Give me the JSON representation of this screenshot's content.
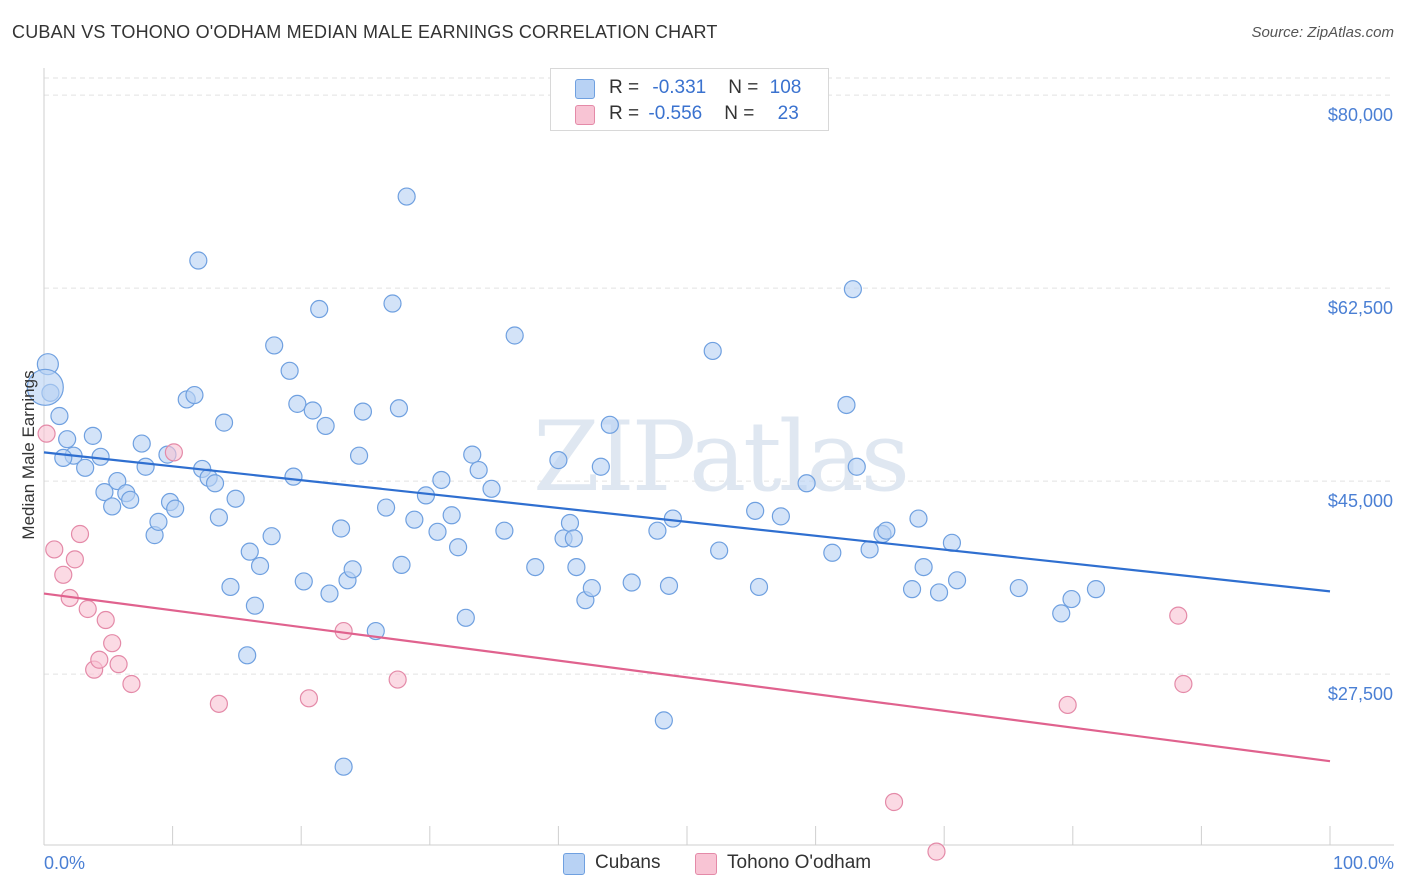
{
  "title": "CUBAN VS TOHONO O'ODHAM MEDIAN MALE EARNINGS CORRELATION CHART",
  "source": "Source: ZipAtlas.com",
  "watermark": "ZIPatlas",
  "colors": {
    "cubans_fill": "#b8d2f4",
    "cubans_stroke": "#6fa0e0",
    "cubans_line": "#2f6fd0",
    "tohono_fill": "#f8c4d4",
    "tohono_stroke": "#e48aa8",
    "tohono_line": "#e0628e",
    "tick_text": "#4a7fd4",
    "grid": "#e2e2e2"
  },
  "legend": {
    "rows": [
      {
        "r_label": "R = ",
        "r_value": "-0.331",
        "n_label": "N = ",
        "n_value": "108"
      },
      {
        "r_label": "R = ",
        "r_value": "-0.556",
        "n_label": "N = ",
        "n_value": "23"
      }
    ]
  },
  "bottom_legend": {
    "cubans": "Cubans",
    "tohono": "Tohono O'odham"
  },
  "chart_data": {
    "type": "scatter",
    "xlabel": "",
    "ylabel": "Median Male Earnings",
    "xlim": [
      0,
      100
    ],
    "ylim": [
      12000,
      83000
    ],
    "x_tick_labels": [
      "0.0%",
      "100.0%"
    ],
    "y_ticks": [
      27500,
      45000,
      62500,
      80000
    ],
    "y_tick_labels": [
      "$27,500",
      "$45,000",
      "$62,500",
      "$80,000"
    ],
    "grid": true,
    "series": [
      {
        "name": "Cubans",
        "trend": {
          "x": [
            0,
            100
          ],
          "y": [
            47600,
            35000
          ]
        },
        "points": [
          [
            0.3,
            55600
          ],
          [
            0.5,
            53000
          ],
          [
            1.2,
            50900
          ],
          [
            1.8,
            48800
          ],
          [
            2.3,
            47300
          ],
          [
            3.2,
            46200
          ],
          [
            3.8,
            49100
          ],
          [
            4.4,
            47200
          ],
          [
            4.7,
            44000
          ],
          [
            5.3,
            42700
          ],
          [
            5.7,
            45000
          ],
          [
            6.4,
            43900
          ],
          [
            6.7,
            43300
          ],
          [
            7.6,
            48400
          ],
          [
            7.9,
            46300
          ],
          [
            8.6,
            40100
          ],
          [
            8.9,
            41300
          ],
          [
            9.6,
            47400
          ],
          [
            9.8,
            43100
          ],
          [
            10.2,
            42500
          ],
          [
            11.1,
            52400
          ],
          [
            11.7,
            52800
          ],
          [
            12.0,
            65000
          ],
          [
            12.3,
            46100
          ],
          [
            12.8,
            45300
          ],
          [
            13.3,
            44800
          ],
          [
            13.6,
            41700
          ],
          [
            14.0,
            50300
          ],
          [
            14.9,
            43400
          ],
          [
            14.5,
            35400
          ],
          [
            16.0,
            38600
          ],
          [
            16.4,
            33700
          ],
          [
            16.8,
            37300
          ],
          [
            15.8,
            29200
          ],
          [
            17.9,
            57300
          ],
          [
            17.7,
            40000
          ],
          [
            19.1,
            55000
          ],
          [
            19.4,
            45400
          ],
          [
            19.7,
            52000
          ],
          [
            20.2,
            35900
          ],
          [
            20.9,
            51400
          ],
          [
            21.4,
            60600
          ],
          [
            21.9,
            50000
          ],
          [
            22.2,
            34800
          ],
          [
            23.1,
            40700
          ],
          [
            23.3,
            19100
          ],
          [
            23.6,
            36000
          ],
          [
            24.0,
            37000
          ],
          [
            24.5,
            47300
          ],
          [
            24.8,
            51300
          ],
          [
            25.8,
            31400
          ],
          [
            26.6,
            42600
          ],
          [
            27.1,
            61100
          ],
          [
            27.6,
            51600
          ],
          [
            27.8,
            37400
          ],
          [
            28.2,
            70800
          ],
          [
            28.8,
            41500
          ],
          [
            29.7,
            43700
          ],
          [
            30.6,
            40400
          ],
          [
            30.9,
            45100
          ],
          [
            31.7,
            41900
          ],
          [
            32.2,
            39000
          ],
          [
            32.8,
            32600
          ],
          [
            33.3,
            47400
          ],
          [
            33.8,
            46000
          ],
          [
            34.8,
            44300
          ],
          [
            35.8,
            40500
          ],
          [
            36.6,
            58200
          ],
          [
            38.2,
            37200
          ],
          [
            40.0,
            46900
          ],
          [
            40.4,
            39800
          ],
          [
            40.9,
            41200
          ],
          [
            41.2,
            39800
          ],
          [
            41.4,
            37200
          ],
          [
            42.1,
            34200
          ],
          [
            42.6,
            35300
          ],
          [
            43.3,
            46300
          ],
          [
            44.0,
            50100
          ],
          [
            45.7,
            35800
          ],
          [
            47.7,
            40500
          ],
          [
            48.2,
            23300
          ],
          [
            48.6,
            35500
          ],
          [
            48.9,
            41600
          ],
          [
            52.0,
            56800
          ],
          [
            52.5,
            38700
          ],
          [
            55.3,
            42300
          ],
          [
            55.6,
            35400
          ],
          [
            57.3,
            41800
          ],
          [
            59.3,
            44800
          ],
          [
            61.3,
            38500
          ],
          [
            62.4,
            51900
          ],
          [
            62.9,
            62400
          ],
          [
            63.2,
            46300
          ],
          [
            64.2,
            38800
          ],
          [
            65.2,
            40200
          ],
          [
            65.5,
            40500
          ],
          [
            67.5,
            35200
          ],
          [
            68.0,
            41600
          ],
          [
            68.4,
            37200
          ],
          [
            69.6,
            34900
          ],
          [
            70.6,
            39400
          ],
          [
            71.0,
            36000
          ],
          [
            75.8,
            35300
          ],
          [
            79.1,
            33000
          ],
          [
            79.9,
            34300
          ],
          [
            81.8,
            35200
          ],
          [
            0.1,
            53500
          ],
          [
            1.5,
            47100
          ]
        ]
      },
      {
        "name": "Tohono O'odham",
        "trend": {
          "x": [
            0,
            100
          ],
          "y": [
            34800,
            19600
          ]
        },
        "points": [
          [
            0.2,
            49300
          ],
          [
            0.8,
            38800
          ],
          [
            1.5,
            36500
          ],
          [
            2.0,
            34400
          ],
          [
            2.4,
            37900
          ],
          [
            2.8,
            40200
          ],
          [
            3.4,
            33400
          ],
          [
            3.9,
            27900
          ],
          [
            4.3,
            28800
          ],
          [
            4.8,
            32400
          ],
          [
            5.3,
            30300
          ],
          [
            5.8,
            28400
          ],
          [
            6.8,
            26600
          ],
          [
            10.1,
            47600
          ],
          [
            13.6,
            24800
          ],
          [
            20.6,
            25300
          ],
          [
            23.3,
            31400
          ],
          [
            27.5,
            27000
          ],
          [
            66.1,
            15900
          ],
          [
            69.4,
            11400
          ],
          [
            79.6,
            24700
          ],
          [
            88.2,
            32800
          ],
          [
            88.6,
            26600
          ]
        ]
      }
    ]
  }
}
